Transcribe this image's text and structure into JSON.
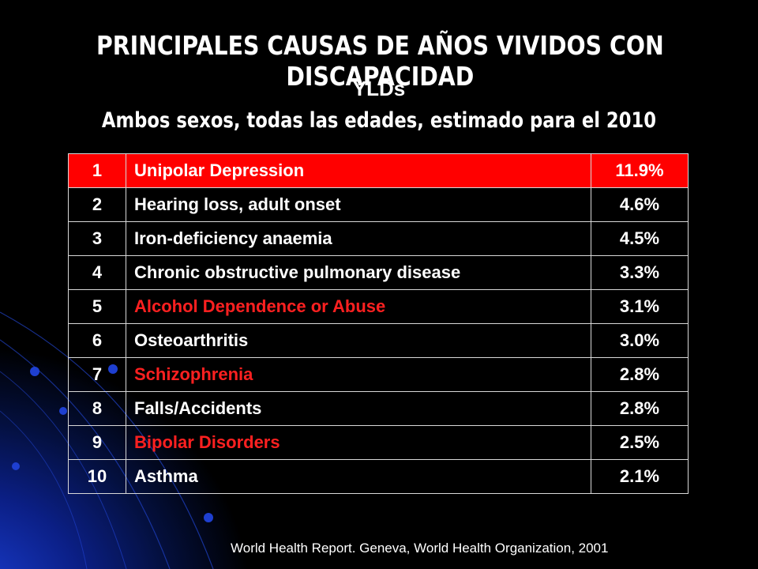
{
  "slide": {
    "title": "PRINCIPALES CAUSAS DE AÑOS VIVIDOS CON DISCAPACIDAD",
    "subtitle": "YLDs",
    "scope": "Ambos sexos, todas las edades, estimado para el 2010",
    "source": "World Health Report. Geneva, World Health Organization, 2001"
  },
  "colors": {
    "highlight_row": "#ff0000",
    "red_text": "#ff2020",
    "background": "#000000",
    "accent_blue": "#1b3fd6"
  },
  "table": {
    "rows": [
      {
        "rank": "1",
        "cause": "Unipolar Depression",
        "percent": "11.9%",
        "highlight": true,
        "red_text": false
      },
      {
        "rank": "2",
        "cause": "Hearing loss, adult onset",
        "percent": "4.6%",
        "highlight": false,
        "red_text": false
      },
      {
        "rank": "3",
        "cause": "Iron-deficiency anaemia",
        "percent": "4.5%",
        "highlight": false,
        "red_text": false
      },
      {
        "rank": "4",
        "cause": "Chronic obstructive pulmonary disease",
        "percent": "3.3%",
        "highlight": false,
        "red_text": false
      },
      {
        "rank": "5",
        "cause": "Alcohol Dependence or Abuse",
        "percent": "3.1%",
        "highlight": false,
        "red_text": true
      },
      {
        "rank": "6",
        "cause": "Osteoarthritis",
        "percent": "3.0%",
        "highlight": false,
        "red_text": false
      },
      {
        "rank": "7",
        "cause": "Schizophrenia",
        "percent": "2.8%",
        "highlight": false,
        "red_text": true
      },
      {
        "rank": "8",
        "cause": "Falls/Accidents",
        "percent": "2.8%",
        "highlight": false,
        "red_text": false
      },
      {
        "rank": "9",
        "cause": "Bipolar Disorders",
        "percent": "2.5%",
        "highlight": false,
        "red_text": true
      },
      {
        "rank": "10",
        "cause": "Asthma",
        "percent": "2.1%",
        "highlight": false,
        "red_text": false
      }
    ]
  }
}
